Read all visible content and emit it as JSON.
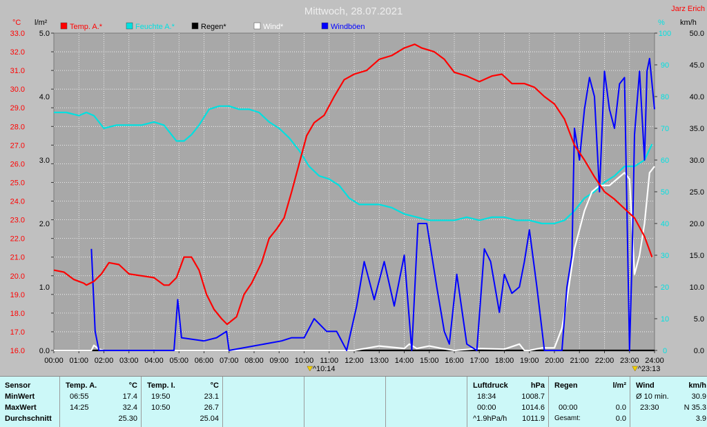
{
  "header": {
    "title": "Mittwoch, 28.07.2021",
    "author": "Jarz Erich",
    "unit_left_temp": "°C",
    "unit_left_rain": "l/m²",
    "unit_right_pct": "%",
    "unit_right_wind": "km/h"
  },
  "legend": [
    {
      "label": "Temp. A.*",
      "color": "#ff0000"
    },
    {
      "label": "Feuchte A.*",
      "color": "#00e0e0"
    },
    {
      "label": "Regen*",
      "color": "#000000"
    },
    {
      "label": "Wind*",
      "color": "#ffffff"
    },
    {
      "label": "Windböen",
      "color": "#0000ff"
    }
  ],
  "markers": {
    "sunrise": "10:14",
    "sunset": "23:13"
  },
  "chart_data": {
    "type": "line",
    "x_unit": "time of day (h)",
    "xlim": [
      0,
      24
    ],
    "x_ticks": [
      "00:00",
      "01:00",
      "02:00",
      "03:00",
      "04:00",
      "05:00",
      "06:00",
      "07:00",
      "08:00",
      "09:00",
      "10:00",
      "11:00",
      "12:00",
      "13:00",
      "14:00",
      "15:00",
      "16:00",
      "17:00",
      "18:00",
      "19:00",
      "20:00",
      "21:00",
      "22:00",
      "23:00",
      "24:00"
    ],
    "axes": {
      "temp": {
        "ylim": [
          16,
          33
        ],
        "ticks": [
          "16.0",
          "17.0",
          "18.0",
          "19.0",
          "20.0",
          "21.0",
          "22.0",
          "23.0",
          "24.0",
          "25.0",
          "26.0",
          "27.0",
          "28.0",
          "29.0",
          "30.0",
          "31.0",
          "32.0",
          "33.0"
        ],
        "color": "#ff0000"
      },
      "rain": {
        "ylim": [
          0,
          5
        ],
        "ticks": [
          "0.0",
          "1.0",
          "2.0",
          "3.0",
          "4.0",
          "5.0"
        ],
        "color": "#000000"
      },
      "humidity": {
        "ylim": [
          0,
          100
        ],
        "ticks": [
          "0",
          "10",
          "20",
          "30",
          "40",
          "50",
          "60",
          "70",
          "80",
          "90",
          "100"
        ],
        "color": "#00e0e0"
      },
      "wind": {
        "ylim": [
          0,
          50
        ],
        "ticks": [
          "0.0",
          "5.0",
          "10.0",
          "15.0",
          "20.0",
          "25.0",
          "30.0",
          "35.0",
          "40.0",
          "45.0",
          "50.0"
        ],
        "color": "#000000"
      }
    },
    "series": [
      {
        "name": "Temp. A.*",
        "axis": "temp",
        "color": "#ff0000",
        "x": [
          0,
          0.4,
          0.8,
          1.2,
          1.3,
          1.6,
          1.9,
          2.2,
          2.6,
          3.0,
          3.5,
          4.0,
          4.4,
          4.6,
          4.9,
          5.2,
          5.5,
          5.8,
          6.1,
          6.4,
          6.7,
          6.92,
          7.3,
          7.6,
          7.9,
          8.3,
          8.6,
          8.9,
          9.2,
          9.5,
          9.8,
          10.1,
          10.4,
          10.8,
          11.2,
          11.6,
          12.0,
          12.5,
          13.0,
          13.5,
          14.0,
          14.42,
          14.7,
          15.2,
          15.6,
          16.0,
          16.5,
          17.0,
          17.5,
          17.9,
          18.3,
          18.8,
          19.2,
          19.6,
          20.0,
          20.4,
          20.8,
          21.2,
          21.6,
          22.0,
          22.4,
          22.8,
          23.2,
          23.6,
          23.9
        ],
        "y": [
          20.3,
          20.2,
          19.8,
          19.6,
          19.5,
          19.7,
          20.1,
          20.7,
          20.6,
          20.1,
          20.0,
          19.9,
          19.5,
          19.5,
          19.9,
          21.0,
          21.0,
          20.3,
          19.0,
          18.2,
          17.7,
          17.4,
          17.8,
          19.0,
          19.6,
          20.7,
          22.0,
          22.5,
          23.1,
          24.5,
          26.0,
          27.5,
          28.2,
          28.6,
          29.6,
          30.5,
          30.8,
          31.0,
          31.6,
          31.8,
          32.2,
          32.4,
          32.2,
          32.0,
          31.6,
          30.9,
          30.7,
          30.4,
          30.7,
          30.8,
          30.3,
          30.3,
          30.1,
          29.6,
          29.2,
          28.4,
          27.0,
          26.2,
          25.3,
          24.5,
          24.1,
          23.6,
          23.1,
          22.1,
          21.0
        ],
        "labels_printed": false
      },
      {
        "name": "Feuchte A.*",
        "axis": "humidity",
        "color": "#00e0e0",
        "x": [
          0,
          0.5,
          1.0,
          1.3,
          1.6,
          2.0,
          2.5,
          3.0,
          3.5,
          4.0,
          4.4,
          4.7,
          4.9,
          5.2,
          5.5,
          5.8,
          6.2,
          6.6,
          7.0,
          7.4,
          7.8,
          8.2,
          8.6,
          9.0,
          9.4,
          9.8,
          10.2,
          10.6,
          11.0,
          11.4,
          11.8,
          12.2,
          12.6,
          13.0,
          13.5,
          14.0,
          14.5,
          15.0,
          15.5,
          16.0,
          16.5,
          17.0,
          17.5,
          18.0,
          18.5,
          19.0,
          19.5,
          20.0,
          20.4,
          20.8,
          21.2,
          21.6,
          22.0,
          22.4,
          22.8,
          23.2,
          23.6,
          23.9
        ],
        "y": [
          75,
          75,
          74,
          75,
          74,
          70,
          71,
          71,
          71,
          72,
          71,
          68,
          66,
          66,
          68,
          71,
          76,
          77,
          77,
          76,
          76,
          75,
          72,
          70,
          67,
          63,
          58,
          55,
          54,
          52,
          48,
          46,
          46,
          46,
          45,
          43,
          42,
          41,
          41,
          41,
          42,
          41,
          42,
          42,
          41,
          41,
          40,
          40,
          41,
          44,
          48,
          50,
          53,
          55,
          58,
          58,
          60,
          65
        ]
      },
      {
        "name": "Regen*",
        "axis": "rain",
        "color": "#000000",
        "x": [
          0,
          24
        ],
        "y": [
          0,
          0
        ]
      },
      {
        "name": "Wind*",
        "axis": "wind",
        "color": "#ffffff",
        "x": [
          0,
          1.5,
          1.6,
          1.8,
          2.0,
          4.0,
          6.0,
          8.0,
          10.0,
          12.0,
          13.0,
          13.5,
          14.0,
          14.2,
          14.5,
          15.0,
          15.5,
          16.0,
          17.0,
          18.0,
          18.6,
          18.8,
          19.0,
          19.5,
          20.0,
          20.3,
          20.5,
          20.8,
          21.2,
          21.5,
          21.8,
          22.2,
          22.5,
          22.8,
          23.0,
          23.2,
          23.4,
          23.6,
          23.8,
          24.0
        ],
        "y": [
          0,
          0,
          0.8,
          0.2,
          0,
          0,
          0,
          0,
          0,
          0,
          0.7,
          0.5,
          0.3,
          1.0,
          0.3,
          0.7,
          0.3,
          0,
          0.3,
          0.2,
          1.0,
          0,
          0,
          0.4,
          0.4,
          3.5,
          8.0,
          16.0,
          22.0,
          25.0,
          26.0,
          26.0,
          27.0,
          28.0,
          27.0,
          12.0,
          15.0,
          20.0,
          28.0,
          29.0
        ]
      },
      {
        "name": "Windböen",
        "axis": "wind",
        "color": "#0000ff",
        "x": [
          1.5,
          1.65,
          1.8,
          2.0,
          4.8,
          4.95,
          5.1,
          6.0,
          6.5,
          6.9,
          7.0,
          9.1,
          9.5,
          10.0,
          10.4,
          10.9,
          11.3,
          11.7,
          12.1,
          12.4,
          12.8,
          13.2,
          13.6,
          14.0,
          14.3,
          14.55,
          14.9,
          15.3,
          15.6,
          15.8,
          16.1,
          16.5,
          16.9,
          17.2,
          17.45,
          17.8,
          18.0,
          18.3,
          18.6,
          18.8,
          19.0,
          19.3,
          19.6,
          19.9,
          20.3,
          20.5,
          20.7,
          20.8,
          21.0,
          21.2,
          21.4,
          21.6,
          21.8,
          22.0,
          22.2,
          22.4,
          22.6,
          22.8,
          23.0,
          23.1,
          23.2,
          23.4,
          23.6,
          23.7,
          23.8,
          24.0
        ],
        "y": [
          16,
          3,
          0,
          0,
          0,
          8,
          2,
          1.5,
          2,
          3,
          0,
          1.5,
          2,
          2,
          5,
          3,
          3,
          0,
          7,
          14,
          8,
          14,
          7,
          15,
          0,
          20,
          20,
          10,
          3,
          1,
          12,
          1,
          0,
          16,
          14,
          6,
          12,
          9,
          10,
          14,
          19,
          10,
          0,
          0,
          0,
          10,
          15,
          35,
          30,
          38,
          43,
          40,
          25,
          44,
          38,
          35,
          42,
          43,
          0,
          14,
          34,
          44,
          30,
          44,
          46,
          38
        ]
      }
    ]
  },
  "stats": {
    "sensor": {
      "header": "Sensor",
      "rows": [
        "MinWert",
        "MaxWert",
        "Durchschnitt"
      ]
    },
    "temp_a": {
      "header": "Temp. A.",
      "unit": "°C",
      "min_time": "06:55",
      "min": "17.4",
      "max_time": "14:25",
      "max": "32.4",
      "avg": "25.30"
    },
    "temp_i": {
      "header": "Temp. I.",
      "unit": "°C",
      "min_time": "19:50",
      "min": "23.1",
      "max_time": "10:50",
      "max": "26.7",
      "avg": "25.04"
    },
    "pressure": {
      "header": "Luftdruck",
      "unit": "hPa",
      "min_time": "18:34",
      "min": "1008.7",
      "max_time": "00:00",
      "max": "1014.6",
      "trend_label": "^1.9hPa/h",
      "trend": "1011.9"
    },
    "rain": {
      "header": "Regen",
      "unit": "l/m²",
      "max_time": "00:00",
      "max": "0.0",
      "total_label": "Gesamt:",
      "total": "0.0"
    },
    "wind": {
      "header": "Wind",
      "unit": "km/h",
      "r1_label": "Ø 10 min.",
      "r1": "30.9",
      "r2_time": "23:30",
      "r2": "N 35.3",
      "r3": "3.9"
    }
  }
}
